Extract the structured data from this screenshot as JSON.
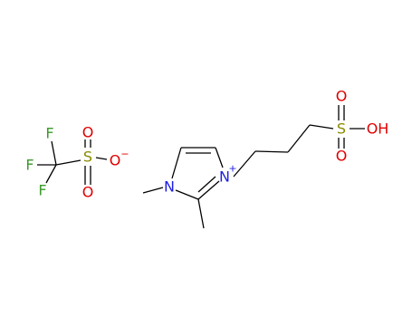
{
  "anion": {
    "atoms": [
      "F",
      "F",
      "F",
      "S",
      "O",
      "O",
      "O"
    ],
    "charge": "−"
  },
  "cation": {
    "atoms": [
      "N",
      "N",
      "S",
      "O",
      "O",
      "OH"
    ],
    "charge": "+"
  }
}
